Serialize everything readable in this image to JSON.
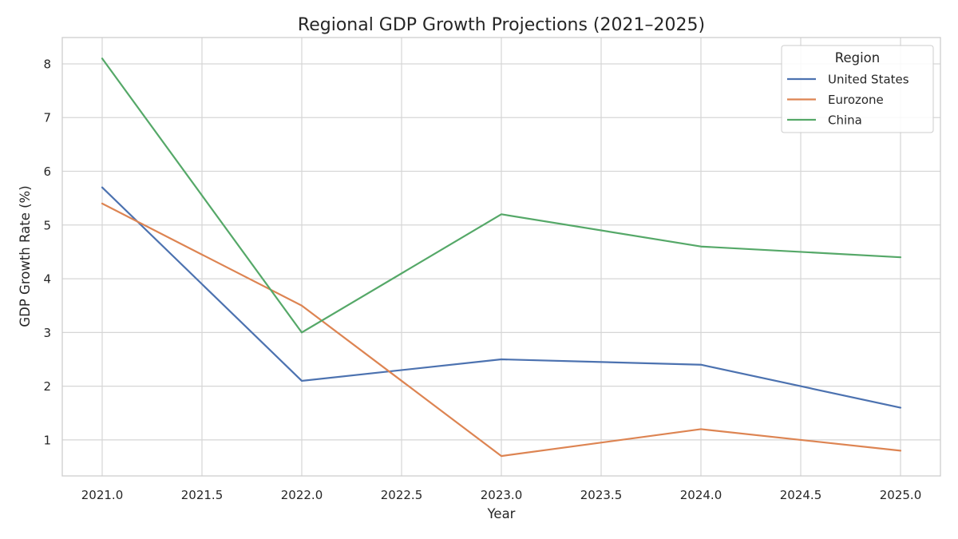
{
  "chart_data": {
    "type": "line",
    "title": "Regional GDP Growth Projections (2021–2025)",
    "xlabel": "Year",
    "ylabel": "GDP Growth Rate (%)",
    "x": [
      2021,
      2022,
      2023,
      2024,
      2025
    ],
    "xlim": [
      2020.8,
      2025.2
    ],
    "ylim": [
      0.33,
      8.49
    ],
    "xticks": [
      2021.0,
      2021.5,
      2022.0,
      2022.5,
      2023.0,
      2023.5,
      2024.0,
      2024.5,
      2025.0
    ],
    "xtick_labels": [
      "2021.0",
      "2021.5",
      "2022.0",
      "2022.5",
      "2023.0",
      "2023.5",
      "2024.0",
      "2024.5",
      "2025.0"
    ],
    "yticks": [
      1,
      2,
      3,
      4,
      5,
      6,
      7,
      8
    ],
    "ytick_labels": [
      "1",
      "2",
      "3",
      "4",
      "5",
      "6",
      "7",
      "8"
    ],
    "grid": true,
    "legend": {
      "title": "Region",
      "placement": "top-right"
    },
    "series": [
      {
        "name": "United States",
        "color": "#4c72b0",
        "values": [
          5.7,
          2.1,
          2.5,
          2.4,
          1.6
        ]
      },
      {
        "name": "Eurozone",
        "color": "#dd8452",
        "values": [
          5.4,
          3.5,
          0.7,
          1.2,
          0.8
        ]
      },
      {
        "name": "China",
        "color": "#55a868",
        "values": [
          8.1,
          3.0,
          5.2,
          4.6,
          4.4
        ]
      }
    ]
  }
}
